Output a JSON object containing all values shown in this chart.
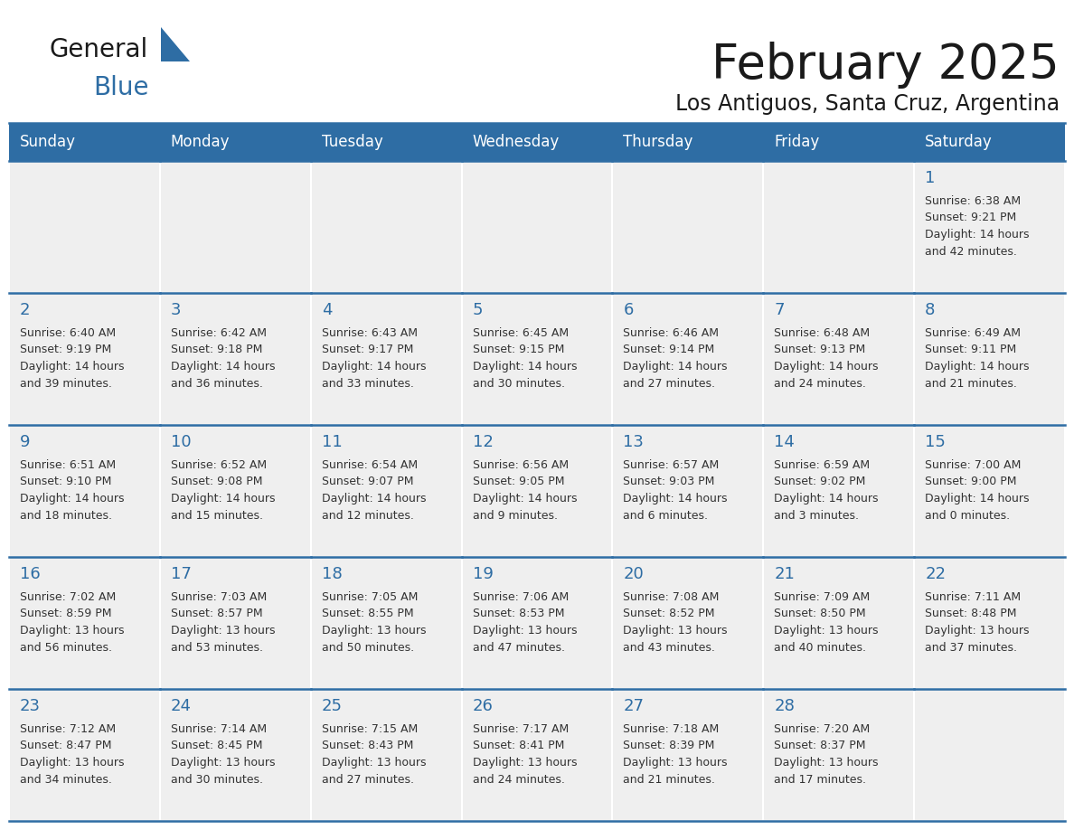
{
  "title": "February 2025",
  "subtitle": "Los Antiguos, Santa Cruz, Argentina",
  "header_bg_color": "#2E6DA4",
  "header_text_color": "#FFFFFF",
  "cell_bg_color": "#EFEFEF",
  "day_number_color": "#2E6DA4",
  "cell_text_color": "#333333",
  "border_color": "#2E6DA4",
  "logo_general_color": "#1a1a1a",
  "logo_blue_color": "#2E6DA4",
  "logo_triangle_color": "#2E6DA4",
  "days_of_week": [
    "Sunday",
    "Monday",
    "Tuesday",
    "Wednesday",
    "Thursday",
    "Friday",
    "Saturday"
  ],
  "weeks": [
    [
      {
        "day": null,
        "info": null
      },
      {
        "day": null,
        "info": null
      },
      {
        "day": null,
        "info": null
      },
      {
        "day": null,
        "info": null
      },
      {
        "day": null,
        "info": null
      },
      {
        "day": null,
        "info": null
      },
      {
        "day": 1,
        "info": "Sunrise: 6:38 AM\nSunset: 9:21 PM\nDaylight: 14 hours\nand 42 minutes."
      }
    ],
    [
      {
        "day": 2,
        "info": "Sunrise: 6:40 AM\nSunset: 9:19 PM\nDaylight: 14 hours\nand 39 minutes."
      },
      {
        "day": 3,
        "info": "Sunrise: 6:42 AM\nSunset: 9:18 PM\nDaylight: 14 hours\nand 36 minutes."
      },
      {
        "day": 4,
        "info": "Sunrise: 6:43 AM\nSunset: 9:17 PM\nDaylight: 14 hours\nand 33 minutes."
      },
      {
        "day": 5,
        "info": "Sunrise: 6:45 AM\nSunset: 9:15 PM\nDaylight: 14 hours\nand 30 minutes."
      },
      {
        "day": 6,
        "info": "Sunrise: 6:46 AM\nSunset: 9:14 PM\nDaylight: 14 hours\nand 27 minutes."
      },
      {
        "day": 7,
        "info": "Sunrise: 6:48 AM\nSunset: 9:13 PM\nDaylight: 14 hours\nand 24 minutes."
      },
      {
        "day": 8,
        "info": "Sunrise: 6:49 AM\nSunset: 9:11 PM\nDaylight: 14 hours\nand 21 minutes."
      }
    ],
    [
      {
        "day": 9,
        "info": "Sunrise: 6:51 AM\nSunset: 9:10 PM\nDaylight: 14 hours\nand 18 minutes."
      },
      {
        "day": 10,
        "info": "Sunrise: 6:52 AM\nSunset: 9:08 PM\nDaylight: 14 hours\nand 15 minutes."
      },
      {
        "day": 11,
        "info": "Sunrise: 6:54 AM\nSunset: 9:07 PM\nDaylight: 14 hours\nand 12 minutes."
      },
      {
        "day": 12,
        "info": "Sunrise: 6:56 AM\nSunset: 9:05 PM\nDaylight: 14 hours\nand 9 minutes."
      },
      {
        "day": 13,
        "info": "Sunrise: 6:57 AM\nSunset: 9:03 PM\nDaylight: 14 hours\nand 6 minutes."
      },
      {
        "day": 14,
        "info": "Sunrise: 6:59 AM\nSunset: 9:02 PM\nDaylight: 14 hours\nand 3 minutes."
      },
      {
        "day": 15,
        "info": "Sunrise: 7:00 AM\nSunset: 9:00 PM\nDaylight: 14 hours\nand 0 minutes."
      }
    ],
    [
      {
        "day": 16,
        "info": "Sunrise: 7:02 AM\nSunset: 8:59 PM\nDaylight: 13 hours\nand 56 minutes."
      },
      {
        "day": 17,
        "info": "Sunrise: 7:03 AM\nSunset: 8:57 PM\nDaylight: 13 hours\nand 53 minutes."
      },
      {
        "day": 18,
        "info": "Sunrise: 7:05 AM\nSunset: 8:55 PM\nDaylight: 13 hours\nand 50 minutes."
      },
      {
        "day": 19,
        "info": "Sunrise: 7:06 AM\nSunset: 8:53 PM\nDaylight: 13 hours\nand 47 minutes."
      },
      {
        "day": 20,
        "info": "Sunrise: 7:08 AM\nSunset: 8:52 PM\nDaylight: 13 hours\nand 43 minutes."
      },
      {
        "day": 21,
        "info": "Sunrise: 7:09 AM\nSunset: 8:50 PM\nDaylight: 13 hours\nand 40 minutes."
      },
      {
        "day": 22,
        "info": "Sunrise: 7:11 AM\nSunset: 8:48 PM\nDaylight: 13 hours\nand 37 minutes."
      }
    ],
    [
      {
        "day": 23,
        "info": "Sunrise: 7:12 AM\nSunset: 8:47 PM\nDaylight: 13 hours\nand 34 minutes."
      },
      {
        "day": 24,
        "info": "Sunrise: 7:14 AM\nSunset: 8:45 PM\nDaylight: 13 hours\nand 30 minutes."
      },
      {
        "day": 25,
        "info": "Sunrise: 7:15 AM\nSunset: 8:43 PM\nDaylight: 13 hours\nand 27 minutes."
      },
      {
        "day": 26,
        "info": "Sunrise: 7:17 AM\nSunset: 8:41 PM\nDaylight: 13 hours\nand 24 minutes."
      },
      {
        "day": 27,
        "info": "Sunrise: 7:18 AM\nSunset: 8:39 PM\nDaylight: 13 hours\nand 21 minutes."
      },
      {
        "day": 28,
        "info": "Sunrise: 7:20 AM\nSunset: 8:37 PM\nDaylight: 13 hours\nand 17 minutes."
      },
      {
        "day": null,
        "info": null
      }
    ]
  ]
}
